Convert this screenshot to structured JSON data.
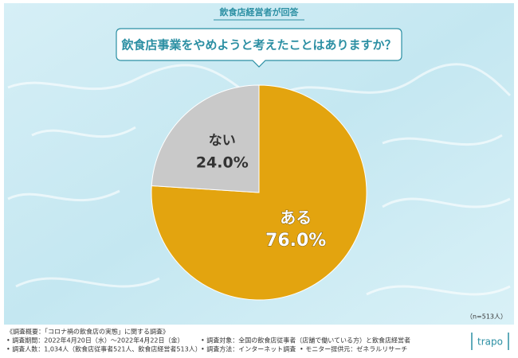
{
  "header": "飲食店経営者が回答",
  "chart_data": {
    "type": "pie",
    "title": "飲食店事業をやめようと考えたことはありますか？",
    "categories": [
      "ある",
      "ない"
    ],
    "values": [
      76.0,
      24.0
    ],
    "value_labels": [
      "76.0%",
      "24.0%"
    ],
    "colors": [
      "#E3A40F",
      "#C9C9C9"
    ],
    "note": "（n=513人）"
  },
  "footer": {
    "heading": "《調査概要：「コロナ禍の飲食店の実態」に関する調査》",
    "items": [
      "• 調査期間：2022年4月20日（水）〜2022年4月22日（金）",
      "• 調査対象：全国の飲食店従事者（店舗で働いている方）と飲食店経営者",
      "• 調査人数：1,034人（飲食店従事者521人、飲食店経営者513人）",
      "• 調査方法：インターネット調査",
      "• モニター提供元：ゼネラルリサーチ"
    ],
    "logo": "trapo"
  }
}
